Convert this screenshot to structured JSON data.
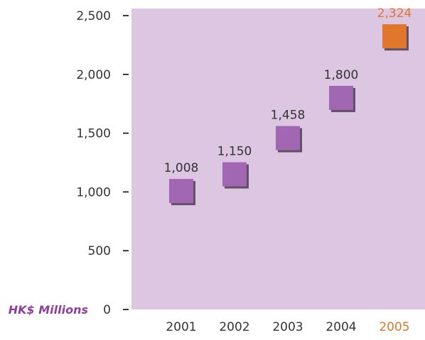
{
  "chart_data": {
    "type": "scatter",
    "unit_label": "HK$ Millions",
    "categories": [
      "2001",
      "2002",
      "2003",
      "2004",
      "2005"
    ],
    "values": [
      1008,
      1150,
      1458,
      1800,
      2324
    ],
    "value_labels": [
      "1,008",
      "1,150",
      "1,458",
      "1,800",
      "2,324"
    ],
    "highlight_index": 4,
    "ylim": [
      0,
      2500
    ],
    "y_ticks": [
      0,
      500,
      1000,
      1500,
      2000,
      2500
    ],
    "y_tick_labels": [
      "0",
      "500",
      "1,000",
      "1,500",
      "2,000",
      "2,500"
    ],
    "grid": false,
    "colors": {
      "plot_background": "#dcc6e2",
      "marker": "#a267b2",
      "marker_highlight": "#e0772c",
      "marker_shadow": "#4a3d4f",
      "unit_label": "#8f3f9c",
      "text": "#333333",
      "highlight_text": "#e0772c",
      "axis_tick": "#222222"
    }
  }
}
